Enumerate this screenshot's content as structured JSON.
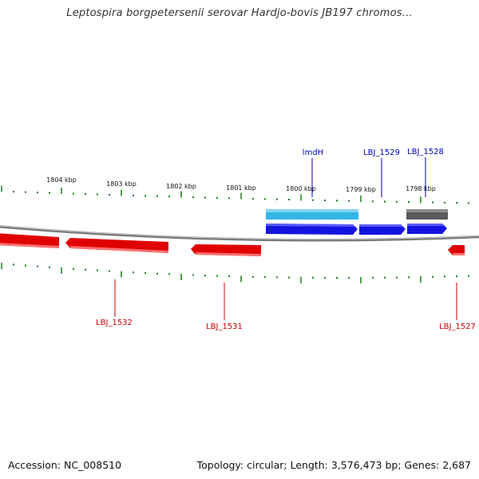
{
  "title": "Leptospira borgpetersenii serovar Hardjo-bovis JB197 chromos...",
  "footer": {
    "accession": "Accession: NC_008510",
    "summary": "Topology: circular; Length: 3,576,473 bp; Genes: 2,687"
  },
  "colors": {
    "backbone": "#8a8a8a",
    "tick": "#1d7a1d",
    "forward_gene": "#1a1ae6",
    "forward_light": "#33b5e5",
    "reverse_gene": "#e60000",
    "gray_feature": "#666666",
    "label_top": "#0000bb",
    "label_bottom": "#cc0000"
  },
  "scale_labels": [
    "1804 kbp",
    "1803 kbp",
    "1802 kbp",
    "1801 kbp",
    "1800 kbp",
    "1799 kbp",
    "1798 kbp"
  ],
  "top_gene_labels": [
    "lmdH",
    "LBJ_1529",
    "LBJ_1528"
  ],
  "bottom_gene_labels": [
    "LBJ_1532",
    "LBJ_1531",
    "LBJ_1527"
  ]
}
